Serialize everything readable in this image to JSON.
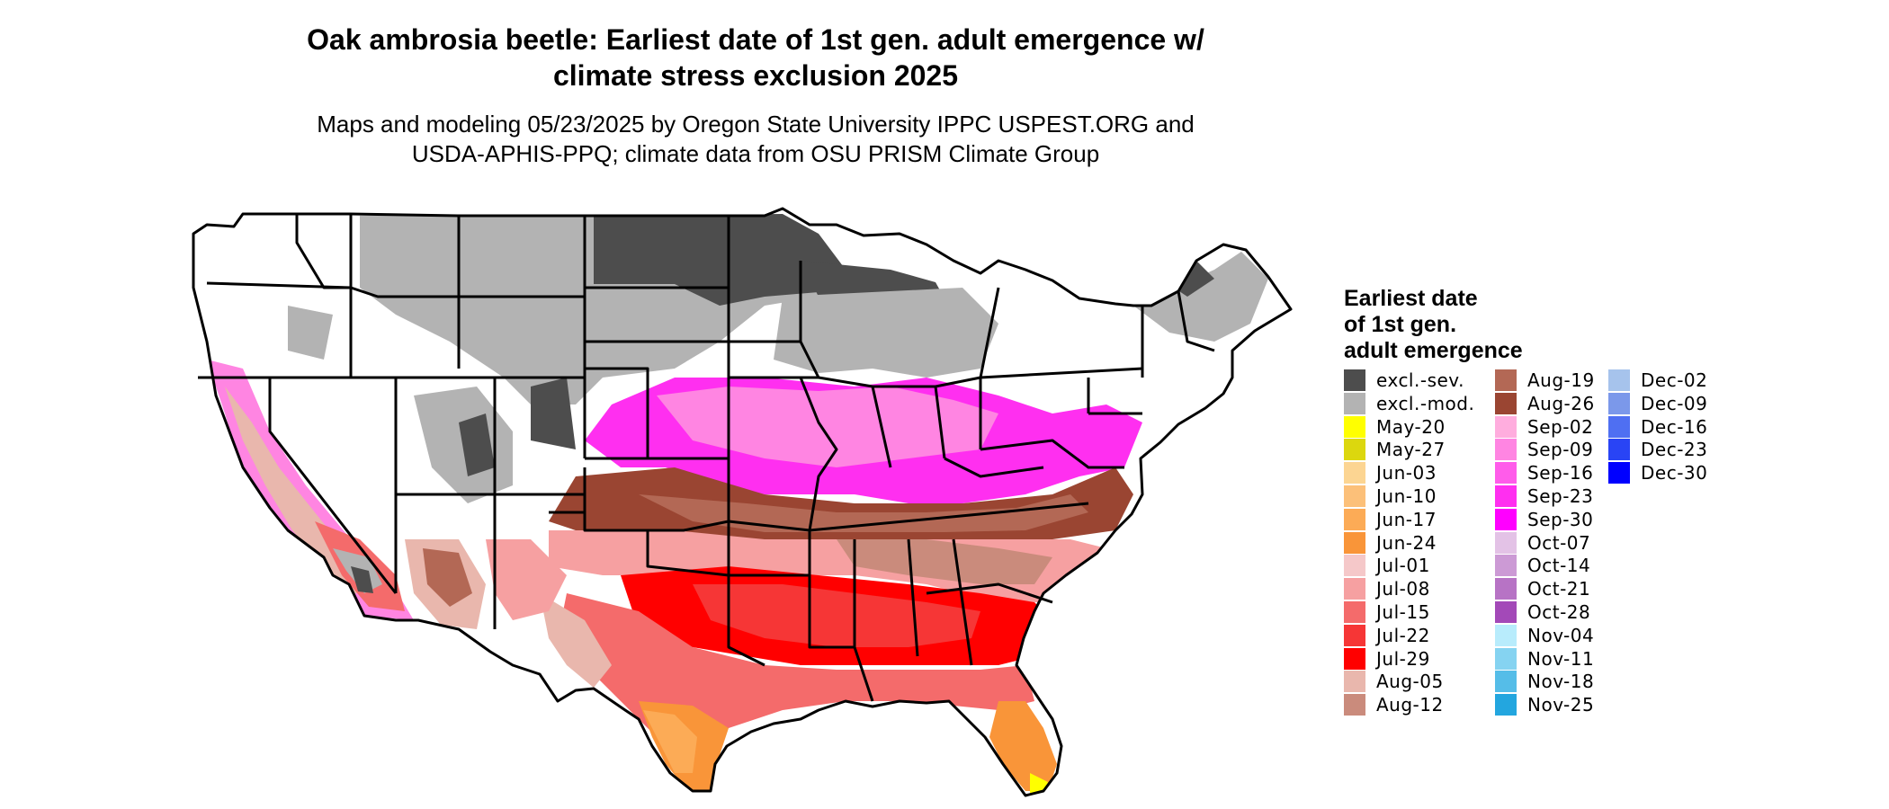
{
  "title": {
    "line1": "Oak ambrosia beetle: Earliest date of 1st gen. adult emergence w/",
    "line2": "climate stress exclusion 2025"
  },
  "subtitle": {
    "line1": "Maps and modeling 05/23/2025 by Oregon State University IPPC USPEST.ORG and",
    "line2": "USDA-APHIS-PPQ; climate data from OSU PRISM Climate Group"
  },
  "legend": {
    "title_lines": [
      "Earliest date",
      "of 1st gen.",
      "adult emergence"
    ],
    "columns": [
      [
        {
          "label": "excl.-sev.",
          "color": "#4d4d4d"
        },
        {
          "label": "excl.-mod.",
          "color": "#b3b3b3"
        },
        {
          "label": "May-20",
          "color": "#ffff00"
        },
        {
          "label": "May-27",
          "color": "#dcd70e"
        },
        {
          "label": "Jun-03",
          "color": "#fcd592"
        },
        {
          "label": "Jun-10",
          "color": "#fcc079"
        },
        {
          "label": "Jun-17",
          "color": "#fcab56"
        },
        {
          "label": "Jun-24",
          "color": "#f99539"
        },
        {
          "label": "Jul-01",
          "color": "#f5c8c9"
        },
        {
          "label": "Jul-08",
          "color": "#f6a0a1"
        },
        {
          "label": "Jul-15",
          "color": "#f46b6b"
        },
        {
          "label": "Jul-22",
          "color": "#f63636"
        },
        {
          "label": "Jul-29",
          "color": "#ff0000"
        },
        {
          "label": "Aug-05",
          "color": "#e9b7ad"
        },
        {
          "label": "Aug-12",
          "color": "#ca8b7c"
        }
      ],
      [
        {
          "label": "Aug-19",
          "color": "#b36855"
        },
        {
          "label": "Aug-26",
          "color": "#9a4532"
        },
        {
          "label": "Sep-02",
          "color": "#ffadde"
        },
        {
          "label": "Sep-09",
          "color": "#ff85e2"
        },
        {
          "label": "Sep-16",
          "color": "#ff5cea"
        },
        {
          "label": "Sep-23",
          "color": "#ff2ff0"
        },
        {
          "label": "Sep-30",
          "color": "#ff00ff"
        },
        {
          "label": "Oct-07",
          "color": "#e3c2e6"
        },
        {
          "label": "Oct-14",
          "color": "#cc9ad5"
        },
        {
          "label": "Oct-21",
          "color": "#b773c5"
        },
        {
          "label": "Oct-28",
          "color": "#a349b8"
        },
        {
          "label": "Nov-04",
          "color": "#b8ecfc"
        },
        {
          "label": "Nov-11",
          "color": "#85d3f1"
        },
        {
          "label": "Nov-18",
          "color": "#55bde8"
        },
        {
          "label": "Nov-25",
          "color": "#23a6df"
        }
      ],
      [
        {
          "label": "Dec-02",
          "color": "#a6c3ec"
        },
        {
          "label": "Dec-09",
          "color": "#7b98ea"
        },
        {
          "label": "Dec-16",
          "color": "#4f6ff2"
        },
        {
          "label": "Dec-23",
          "color": "#2944f5"
        },
        {
          "label": "Dec-30",
          "color": "#0000ff"
        }
      ]
    ]
  }
}
